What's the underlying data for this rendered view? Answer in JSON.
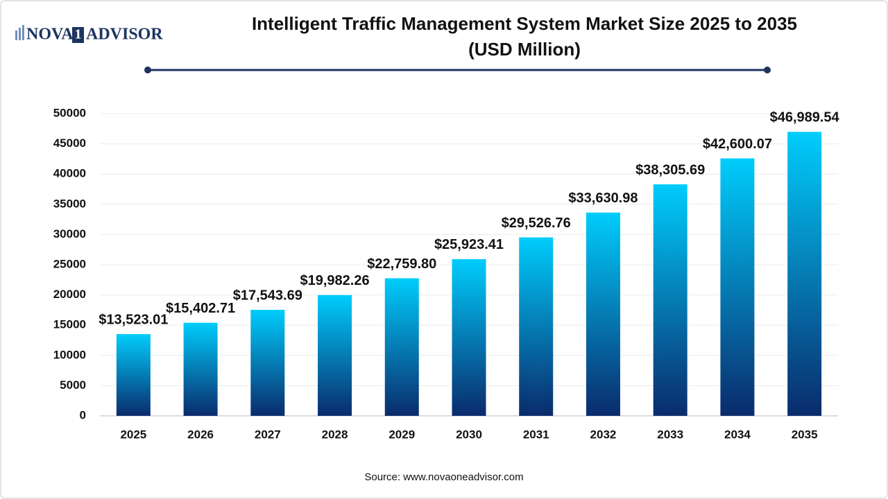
{
  "logo": {
    "part1": "NOVA",
    "part2": "1",
    "part3": "ADVISOR"
  },
  "chart_data": {
    "type": "bar",
    "title": "Intelligent Traffic Management System Market Size 2025 to 2035",
    "subtitle": "(USD Million)",
    "categories": [
      "2025",
      "2026",
      "2027",
      "2028",
      "2029",
      "2030",
      "2031",
      "2032",
      "2033",
      "2034",
      "2035"
    ],
    "values": [
      13523.01,
      15402.71,
      17543.69,
      19982.26,
      22759.8,
      25923.41,
      29526.76,
      33630.98,
      38305.69,
      42600.07,
      46989.54
    ],
    "value_labels": [
      "$13,523.01",
      "$15,402.71",
      "$17,543.69",
      "$19,982.26",
      "$22,759.80",
      "$25,923.41",
      "$29,526.76",
      "$33,630.98",
      "$38,305.69",
      "$42,600.07",
      "$46,989.54"
    ],
    "gradient": [
      "#00cdfc",
      "#0a2b6c"
    ],
    "ylim": [
      0,
      50000
    ],
    "yticks": [
      0,
      5000,
      10000,
      15000,
      20000,
      25000,
      30000,
      35000,
      40000,
      45000,
      50000
    ],
    "grid": true,
    "source": "Source: www.novaoneadvisor.com"
  }
}
